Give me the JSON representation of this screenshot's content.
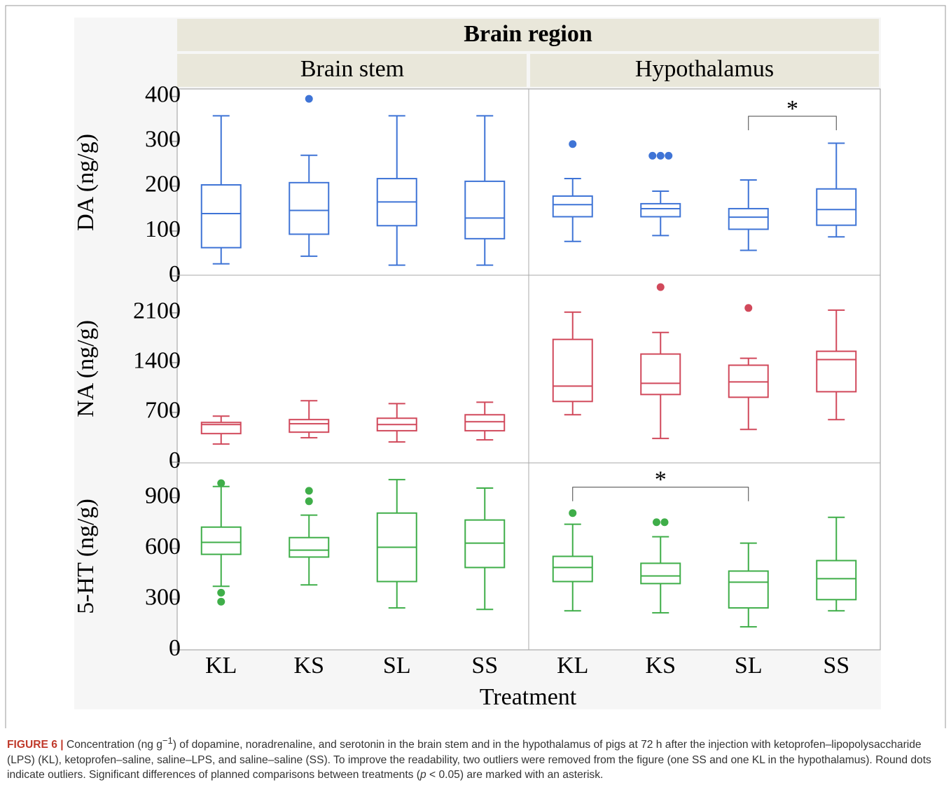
{
  "chart_data": {
    "type": "box",
    "facet_title": "Brain region",
    "columns": [
      "Brain stem",
      "Hypothalamus"
    ],
    "categories": [
      "KL",
      "KS",
      "SL",
      "SS"
    ],
    "x_label": "Treatment",
    "rows": [
      {
        "y_label": "DA (ng/g)",
        "color": "#3f74d6",
        "ylim": [
          0,
          417
        ],
        "yticks": [
          0,
          100,
          200,
          300,
          400
        ],
        "panels": [
          [
            {
              "min": 27,
              "q1": 63,
              "median": 139,
              "q3": 203,
              "max": 357,
              "outliers": []
            },
            {
              "min": 44,
              "q1": 93,
              "median": 146,
              "q3": 208,
              "max": 269,
              "outliers": [
                395
              ]
            },
            {
              "min": 24,
              "q1": 112,
              "median": 165,
              "q3": 217,
              "max": 357,
              "outliers": []
            },
            {
              "min": 24,
              "q1": 83,
              "median": 129,
              "q3": 211,
              "max": 357,
              "outliers": []
            }
          ],
          [
            {
              "min": 77,
              "q1": 132,
              "median": 159,
              "q3": 178,
              "max": 217,
              "outliers": [
                294
              ]
            },
            {
              "min": 90,
              "q1": 132,
              "median": 150,
              "q3": 161,
              "max": 189,
              "outliers": [
                268,
                268,
                268
              ]
            },
            {
              "min": 57,
              "q1": 104,
              "median": 131,
              "q3": 150,
              "max": 214,
              "outliers": []
            },
            {
              "min": 87,
              "q1": 113,
              "median": 148,
              "q3": 194,
              "max": 296,
              "outliers": []
            }
          ]
        ],
        "annotations": [
          {
            "label": "*",
            "column": "Hypothalamus",
            "between": [
              "SL",
              "SS"
            ],
            "y": 356
          }
        ]
      },
      {
        "y_label": "NA (ng/g)",
        "color": "#d1495b",
        "ylim": [
          0,
          2630
        ],
        "yticks": [
          0,
          700,
          1400,
          2100
        ],
        "panels": [
          [
            {
              "min": 255,
              "q1": 402,
              "median": 530,
              "q3": 559,
              "max": 648,
              "outliers": []
            },
            {
              "min": 343,
              "q1": 422,
              "median": 540,
              "q3": 599,
              "max": 864,
              "outliers": []
            },
            {
              "min": 285,
              "q1": 442,
              "median": 530,
              "q3": 618,
              "max": 824,
              "outliers": []
            },
            {
              "min": 314,
              "q1": 442,
              "median": 569,
              "q3": 667,
              "max": 844,
              "outliers": []
            }
          ],
          [
            {
              "min": 667,
              "q1": 854,
              "median": 1070,
              "q3": 1727,
              "max": 2110,
              "outliers": []
            },
            {
              "min": 334,
              "q1": 952,
              "median": 1109,
              "q3": 1521,
              "max": 1825,
              "outliers": [
                2463
              ]
            },
            {
              "min": 461,
              "q1": 913,
              "median": 1129,
              "q3": 1364,
              "max": 1462,
              "outliers": [
                2169
              ]
            },
            {
              "min": 599,
              "q1": 991,
              "median": 1443,
              "q3": 1560,
              "max": 2139,
              "outliers": []
            }
          ]
        ],
        "annotations": []
      },
      {
        "y_label": "5-HT (ng/g)",
        "color": "#3fae49",
        "ylim": [
          0,
          1106
        ],
        "yticks": [
          0,
          300,
          600,
          900
        ],
        "panels": [
          [
            {
              "min": 376,
              "q1": 565,
              "median": 636,
              "q3": 726,
              "max": 966,
              "outliers": [
                986,
                338,
                285
              ]
            },
            {
              "min": 384,
              "q1": 549,
              "median": 590,
              "q3": 664,
              "max": 797,
              "outliers": [
                941,
                879
              ]
            },
            {
              "min": 248,
              "q1": 404,
              "median": 607,
              "q3": 809,
              "max": 1007,
              "outliers": []
            },
            {
              "min": 239,
              "q1": 487,
              "median": 631,
              "q3": 768,
              "max": 957,
              "outliers": []
            }
          ],
          [
            {
              "min": 231,
              "q1": 404,
              "median": 487,
              "q3": 553,
              "max": 743,
              "outliers": [
                809
              ]
            },
            {
              "min": 219,
              "q1": 392,
              "median": 437,
              "q3": 512,
              "max": 669,
              "outliers": [
                755,
                755
              ]
            },
            {
              "min": 136,
              "q1": 248,
              "median": 400,
              "q3": 466,
              "max": 631,
              "outliers": []
            },
            {
              "min": 231,
              "q1": 297,
              "median": 421,
              "q3": 528,
              "max": 784,
              "outliers": []
            }
          ]
        ],
        "annotations": [
          {
            "label": "*",
            "column": "Hypothalamus",
            "between": [
              "KL",
              "SL"
            ],
            "y": 962
          }
        ]
      }
    ]
  },
  "caption": {
    "label": "FIGURE 6 |",
    "text_1": " Concentration (ng g",
    "superscript": "−1",
    "text_2": ") of dopamine, noradrenaline, and serotonin in the brain stem and in the hypothalamus of pigs at 72 h after the injection with ketoprofen–lipopolysaccharide (LPS) (KL), ketoprofen–saline, saline–LPS, and saline–saline (SS). To improve the readability, two outliers were removed from the figure (one SS and one KL in the hypothalamus). Round dots indicate outliers. Significant differences of planned comparisons between treatments (",
    "italic": "p",
    "text_3": " < 0.05) are marked with an asterisk."
  }
}
